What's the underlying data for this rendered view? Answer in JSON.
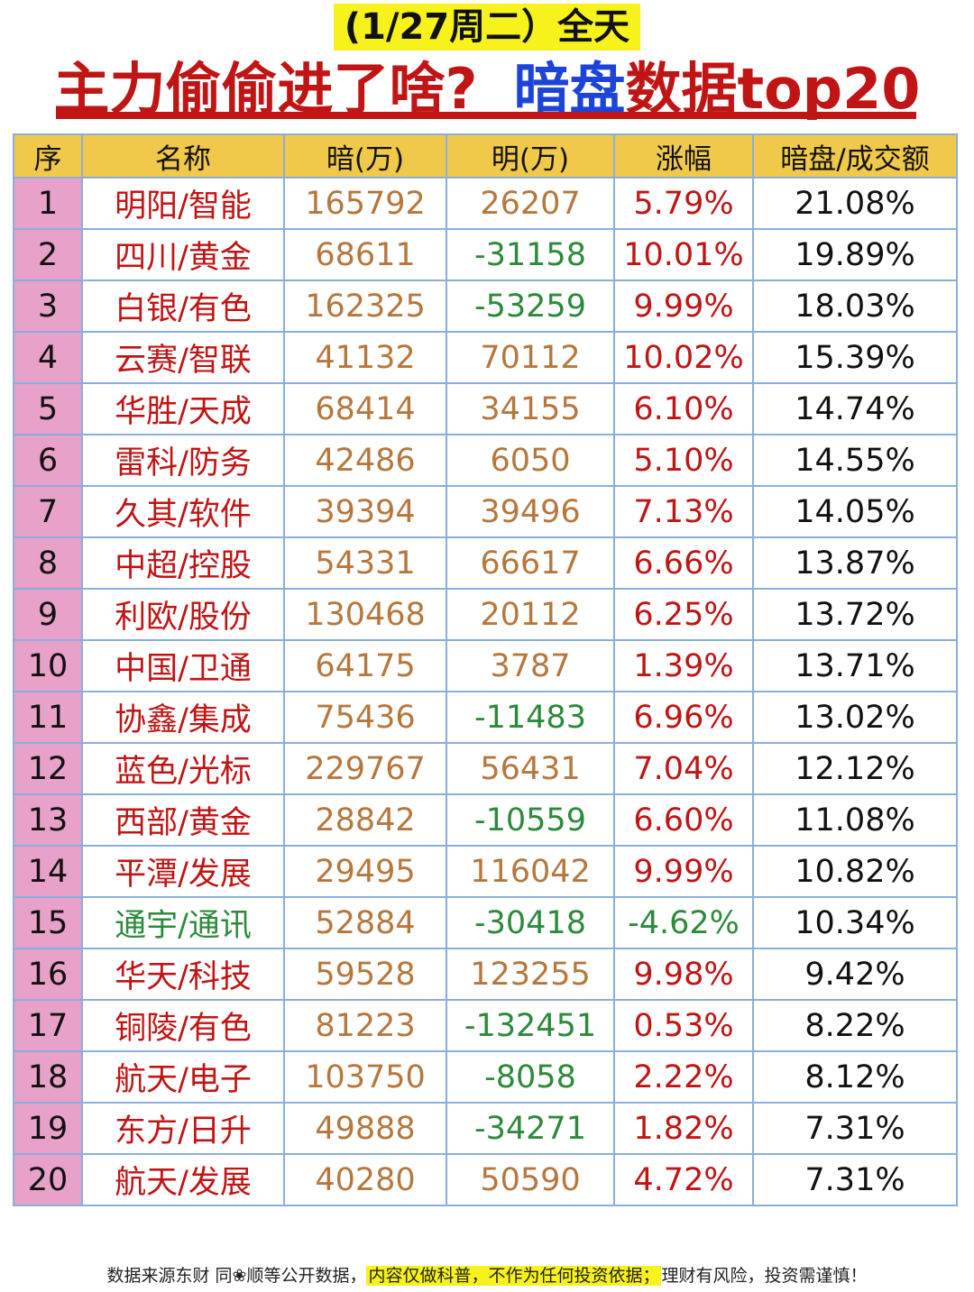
{
  "header": {
    "date": "(1/27周二）全天",
    "title_part1": "主力偷偷进了啥?",
    "title_part2": "暗盘",
    "title_part3": "数据top20"
  },
  "columns": [
    "序",
    "名称",
    "暗(万)",
    "明(万)",
    "涨幅",
    "暗盘/成交额"
  ],
  "colors": {
    "red": "#c11414",
    "green": "#2c8a3a",
    "orange": "#b6773d",
    "header_yellow": "#f0c84a",
    "index_pink": "#e8a1c9",
    "border_blue": "#8aaedc",
    "highlight_yellow": "#f7f21b",
    "title_blue": "#1d44d8"
  },
  "rows": [
    {
      "idx": "1",
      "name": "明阳/智能",
      "dark": "165792",
      "lit": "26207",
      "change": "5.79%",
      "ratio": "21.08%"
    },
    {
      "idx": "2",
      "name": "四川/黄金",
      "dark": "68611",
      "lit": "-31158",
      "change": "10.01%",
      "ratio": "19.89%"
    },
    {
      "idx": "3",
      "name": "白银/有色",
      "dark": "162325",
      "lit": "-53259",
      "change": "9.99%",
      "ratio": "18.03%"
    },
    {
      "idx": "4",
      "name": "云赛/智联",
      "dark": "41132",
      "lit": "70112",
      "change": "10.02%",
      "ratio": "15.39%"
    },
    {
      "idx": "5",
      "name": "华胜/天成",
      "dark": "68414",
      "lit": "34155",
      "change": "6.10%",
      "ratio": "14.74%"
    },
    {
      "idx": "6",
      "name": "雷科/防务",
      "dark": "42486",
      "lit": "6050",
      "change": "5.10%",
      "ratio": "14.55%"
    },
    {
      "idx": "7",
      "name": "久其/软件",
      "dark": "39394",
      "lit": "39496",
      "change": "7.13%",
      "ratio": "14.05%"
    },
    {
      "idx": "8",
      "name": "中超/控股",
      "dark": "54331",
      "lit": "66617",
      "change": "6.66%",
      "ratio": "13.87%"
    },
    {
      "idx": "9",
      "name": "利欧/股份",
      "dark": "130468",
      "lit": "20112",
      "change": "6.25%",
      "ratio": "13.72%"
    },
    {
      "idx": "10",
      "name": "中国/卫通",
      "dark": "64175",
      "lit": "3787",
      "change": "1.39%",
      "ratio": "13.71%"
    },
    {
      "idx": "11",
      "name": "协鑫/集成",
      "dark": "75436",
      "lit": "-11483",
      "change": "6.96%",
      "ratio": "13.02%"
    },
    {
      "idx": "12",
      "name": "蓝色/光标",
      "dark": "229767",
      "lit": "56431",
      "change": "7.04%",
      "ratio": "12.12%"
    },
    {
      "idx": "13",
      "name": "西部/黄金",
      "dark": "28842",
      "lit": "-10559",
      "change": "6.60%",
      "ratio": "11.08%"
    },
    {
      "idx": "14",
      "name": "平潭/发展",
      "dark": "29495",
      "lit": "116042",
      "change": "9.99%",
      "ratio": "10.82%"
    },
    {
      "idx": "15",
      "name": "通宇/通讯",
      "dark": "52884",
      "lit": "-30418",
      "change": "-4.62%",
      "ratio": "10.34%"
    },
    {
      "idx": "16",
      "name": "华天/科技",
      "dark": "59528",
      "lit": "123255",
      "change": "9.98%",
      "ratio": "9.42%"
    },
    {
      "idx": "17",
      "name": "铜陵/有色",
      "dark": "81223",
      "lit": "-132451",
      "change": "0.53%",
      "ratio": "8.22%"
    },
    {
      "idx": "18",
      "name": "航天/电子",
      "dark": "103750",
      "lit": "-8058",
      "change": "2.22%",
      "ratio": "8.12%"
    },
    {
      "idx": "19",
      "name": "东方/日升",
      "dark": "49888",
      "lit": "-34271",
      "change": "1.82%",
      "ratio": "7.31%"
    },
    {
      "idx": "20",
      "name": "航天/发展",
      "dark": "40280",
      "lit": "50590",
      "change": "4.72%",
      "ratio": "7.31%"
    }
  ],
  "footer": {
    "part1": "数据来源东财 同❀顺等公开数据，",
    "part2": "内容仅做科普，不作为任何投资依据；",
    "part3": "理财有风险，投资需谨慎！"
  }
}
